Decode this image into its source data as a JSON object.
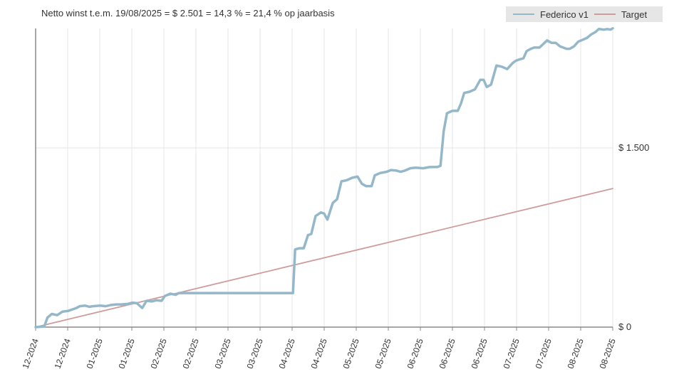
{
  "chart_data": {
    "type": "line",
    "title": "Netto winst t.e.m. 19/08/2025 = $ 2.501 = 14,3 % = 21,4 % op jaarbasis",
    "xlabel": "",
    "ylabel": "",
    "x_ticks": [
      "12-2024",
      "12-2024",
      "01-2025",
      "01-2025",
      "02-2025",
      "02-2025",
      "03-2025",
      "03-2025",
      "04-2025",
      "04-2025",
      "05-2025",
      "05-2025",
      "06-2025",
      "06-2025",
      "06-2025",
      "07-2025",
      "07-2025",
      "08-2025",
      "08-2025"
    ],
    "y_ticks": [
      {
        "value": 0,
        "label": "$ 0"
      },
      {
        "value": 1500,
        "label": "$ 1.500"
      }
    ],
    "ylim": [
      0,
      2500
    ],
    "y_axis_side": "right",
    "grid": true,
    "legend_position": "top-right",
    "series": [
      {
        "name": "Federico v1",
        "color": "#94b8c9",
        "points": [
          [
            0,
            0
          ],
          [
            0.8,
            5
          ],
          [
            1.1,
            80
          ],
          [
            1.5,
            110
          ],
          [
            2.0,
            100
          ],
          [
            2.5,
            130
          ],
          [
            3.0,
            135
          ],
          [
            3.8,
            160
          ],
          [
            4.1,
            175
          ],
          [
            4.6,
            180
          ],
          [
            5.0,
            170
          ],
          [
            5.3,
            175
          ],
          [
            6.0,
            180
          ],
          [
            6.5,
            175
          ],
          [
            7.0,
            185
          ],
          [
            7.5,
            190
          ],
          [
            8.0,
            190
          ],
          [
            8.6,
            195
          ],
          [
            9.0,
            205
          ],
          [
            9.4,
            200
          ],
          [
            9.9,
            160
          ],
          [
            10.3,
            220
          ],
          [
            10.8,
            215
          ],
          [
            11.2,
            225
          ],
          [
            11.7,
            220
          ],
          [
            12.0,
            260
          ],
          [
            12.5,
            280
          ],
          [
            13.0,
            270
          ],
          [
            13.3,
            285
          ],
          [
            14.0,
            285
          ],
          [
            16,
            285
          ],
          [
            18,
            285
          ],
          [
            20,
            285
          ],
          [
            22,
            285
          ],
          [
            23.9,
            285
          ],
          [
            24.1,
            650
          ],
          [
            24.5,
            660
          ],
          [
            24.9,
            660
          ],
          [
            25.3,
            770
          ],
          [
            25.6,
            780
          ],
          [
            26.0,
            930
          ],
          [
            26.5,
            960
          ],
          [
            26.8,
            950
          ],
          [
            27.1,
            900
          ],
          [
            27.6,
            1040
          ],
          [
            28.0,
            1070
          ],
          [
            28.4,
            1220
          ],
          [
            28.9,
            1230
          ],
          [
            29.4,
            1250
          ],
          [
            29.9,
            1260
          ],
          [
            30.3,
            1200
          ],
          [
            30.7,
            1180
          ],
          [
            31.2,
            1180
          ],
          [
            31.5,
            1270
          ],
          [
            32.0,
            1290
          ],
          [
            32.6,
            1300
          ],
          [
            33.0,
            1315
          ],
          [
            33.5,
            1310
          ],
          [
            33.9,
            1300
          ],
          [
            34.3,
            1310
          ],
          [
            34.8,
            1330
          ],
          [
            35.3,
            1335
          ],
          [
            36.0,
            1330
          ],
          [
            36.6,
            1340
          ],
          [
            37.3,
            1340
          ],
          [
            37.6,
            1350
          ],
          [
            37.9,
            1640
          ],
          [
            38.2,
            1790
          ],
          [
            38.7,
            1810
          ],
          [
            39.2,
            1810
          ],
          [
            39.5,
            1870
          ],
          [
            39.8,
            1960
          ],
          [
            40.3,
            1970
          ],
          [
            40.8,
            1990
          ],
          [
            41.3,
            2070
          ],
          [
            41.6,
            2070
          ],
          [
            41.9,
            2010
          ],
          [
            42.3,
            2030
          ],
          [
            42.8,
            2190
          ],
          [
            43.3,
            2180
          ],
          [
            43.8,
            2160
          ],
          [
            44.3,
            2210
          ],
          [
            44.6,
            2230
          ],
          [
            44.9,
            2240
          ],
          [
            45.3,
            2250
          ],
          [
            45.6,
            2310
          ],
          [
            46.0,
            2330
          ],
          [
            46.3,
            2340
          ],
          [
            46.8,
            2340
          ],
          [
            47.5,
            2400
          ],
          [
            47.9,
            2380
          ],
          [
            48.3,
            2380
          ],
          [
            48.7,
            2350
          ],
          [
            49.0,
            2340
          ],
          [
            49.3,
            2330
          ],
          [
            49.6,
            2330
          ],
          [
            50.0,
            2350
          ],
          [
            50.4,
            2390
          ],
          [
            50.8,
            2405
          ],
          [
            51.2,
            2420
          ],
          [
            51.6,
            2450
          ],
          [
            52.0,
            2470
          ],
          [
            52.3,
            2495
          ],
          [
            52.8,
            2490
          ],
          [
            53.1,
            2495
          ],
          [
            53.4,
            2490
          ],
          [
            53.6,
            2501
          ]
        ]
      },
      {
        "name": "Target",
        "color": "#cf9c9c",
        "points": [
          [
            0,
            0
          ],
          [
            53.6,
            1160
          ]
        ]
      }
    ]
  }
}
